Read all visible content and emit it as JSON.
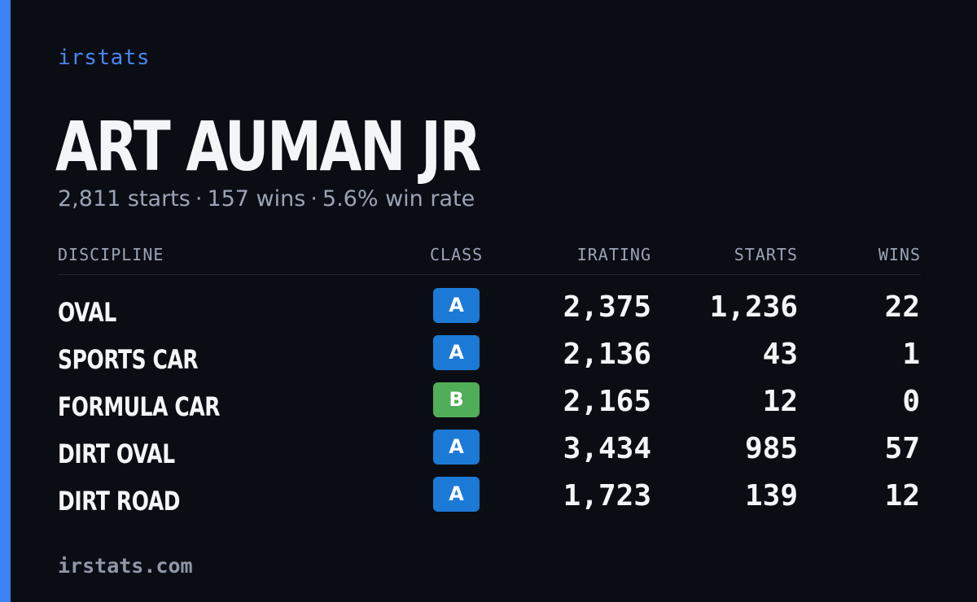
{
  "brand": "irstats",
  "player": {
    "name": "ART AUMAN JR",
    "starts_text": "2,811 starts",
    "wins_text": "157 wins",
    "win_rate_text": "5.6% win rate",
    "separator": "·"
  },
  "table": {
    "headers": {
      "discipline": "DISCIPLINE",
      "class": "CLASS",
      "irating": "IRATING",
      "starts": "STARTS",
      "wins": "WINS"
    },
    "rows": [
      {
        "discipline": "OVAL",
        "class": "A",
        "irating": "2,375",
        "starts": "1,236",
        "wins": "22"
      },
      {
        "discipline": "SPORTS CAR",
        "class": "A",
        "irating": "2,136",
        "starts": "43",
        "wins": "1"
      },
      {
        "discipline": "FORMULA CAR",
        "class": "B",
        "irating": "2,165",
        "starts": "12",
        "wins": "0"
      },
      {
        "discipline": "DIRT OVAL",
        "class": "A",
        "irating": "3,434",
        "starts": "985",
        "wins": "57"
      },
      {
        "discipline": "DIRT ROAD",
        "class": "A",
        "irating": "1,723",
        "starts": "139",
        "wins": "12"
      }
    ]
  },
  "footer": {
    "url": "irstats.com"
  },
  "colors": {
    "accent": "#3b82f6",
    "background": "#0b0d14",
    "class_a": "#1c7ad6",
    "class_b": "#4fae57"
  }
}
